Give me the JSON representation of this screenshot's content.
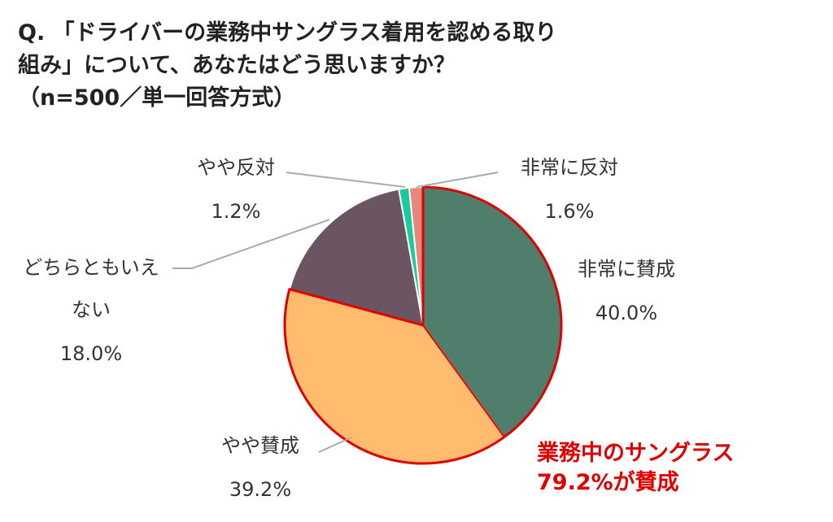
{
  "chart_data": {
    "type": "pie",
    "title_lines": [
      "Q. 「ドライバーの業務中サングラス着用を認める取り",
      "組み」について、あなたはどう思いますか？",
      "（n=500／単一回答方式）"
    ],
    "categories": [
      "非常に賛成",
      "やや賛成",
      "どちらともいえない",
      "やや反対",
      "非常に反対"
    ],
    "values": [
      40.0,
      39.2,
      18.0,
      1.2,
      1.6
    ],
    "value_labels": [
      "40.0%",
      "39.2%",
      "18.0%",
      "1.2%",
      "1.6%"
    ],
    "colors": [
      "#4f7f6c",
      "#ffbb6e",
      "#6b5563",
      "#1cc99a",
      "#e8887c"
    ],
    "annotation_lines": [
      "業務中のサングラス",
      "79.2%が賛成"
    ]
  }
}
